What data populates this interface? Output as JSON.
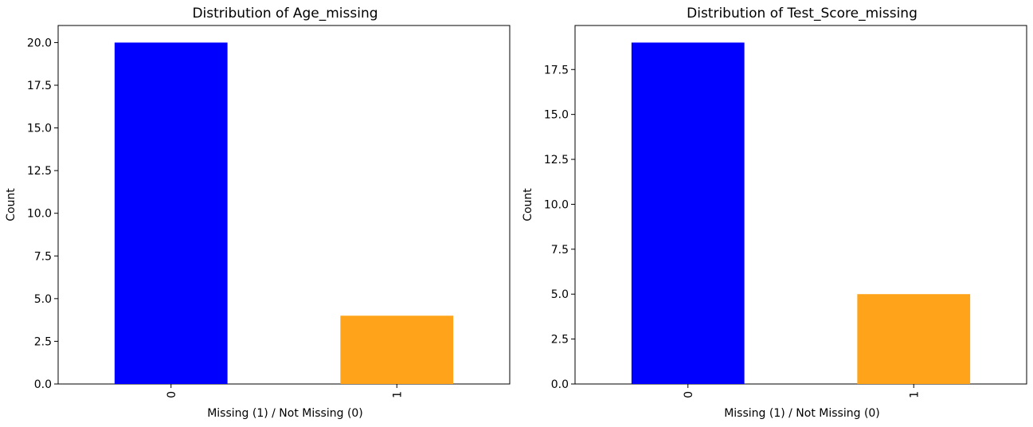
{
  "chart_data": [
    {
      "type": "bar",
      "title": "Distribution of Age_missing",
      "xlabel": "Missing (1) / Not Missing (0)",
      "ylabel": "Count",
      "categories": [
        "0",
        "1"
      ],
      "values": [
        20,
        4
      ],
      "colors": [
        "#0000ff",
        "#ffa31a"
      ],
      "ylim": [
        0,
        21
      ],
      "yticks": [
        0.0,
        2.5,
        5.0,
        7.5,
        10.0,
        12.5,
        15.0,
        17.5,
        20.0
      ],
      "ytick_labels": [
        "0.0",
        "2.5",
        "5.0",
        "7.5",
        "10.0",
        "12.5",
        "15.0",
        "17.5",
        "20.0"
      ],
      "grid": false
    },
    {
      "type": "bar",
      "title": "Distribution of Test_Score_missing",
      "xlabel": "Missing (1) / Not Missing (0)",
      "ylabel": "Count",
      "categories": [
        "0",
        "1"
      ],
      "values": [
        19,
        5
      ],
      "colors": [
        "#0000ff",
        "#ffa31a"
      ],
      "ylim": [
        0,
        19.95
      ],
      "yticks": [
        0.0,
        2.5,
        5.0,
        7.5,
        10.0,
        12.5,
        15.0,
        17.5
      ],
      "ytick_labels": [
        "0.0",
        "2.5",
        "5.0",
        "7.5",
        "10.0",
        "12.5",
        "15.0",
        "17.5"
      ],
      "grid": false
    }
  ]
}
